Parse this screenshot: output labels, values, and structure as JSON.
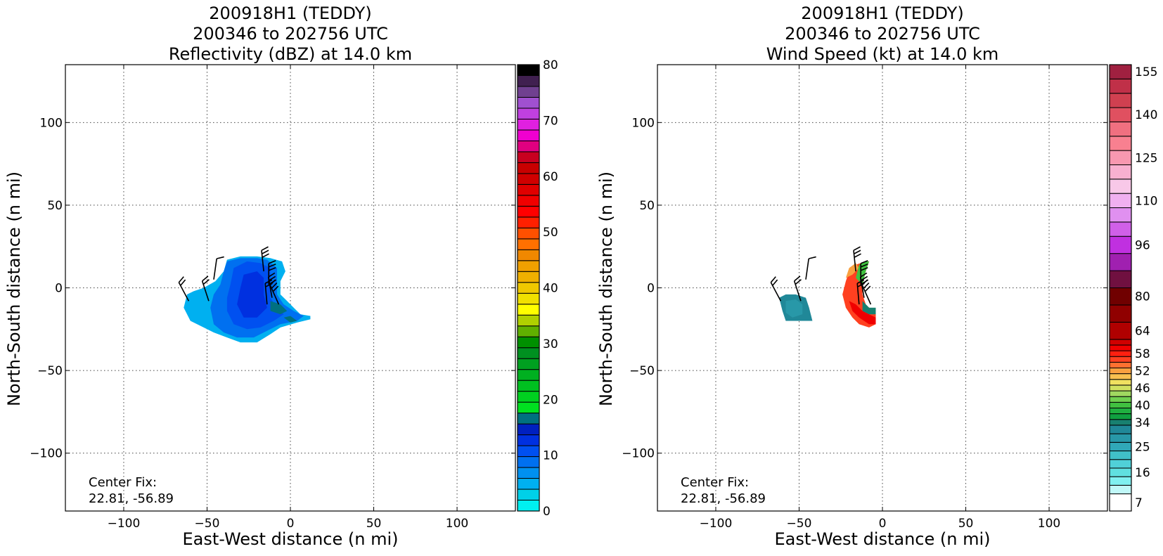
{
  "chart_data": [
    {
      "type": "heatmap",
      "title_lines": [
        "200918H1 (TEDDY)",
        "200346 to 202756 UTC",
        "Reflectivity (dBZ) at 14.0 km"
      ],
      "xlabel": "East-West distance (n mi)",
      "ylabel": "North-South distance (n mi)",
      "xlim": [
        -135,
        135
      ],
      "ylim": [
        -135,
        135
      ],
      "xticks": [
        -100,
        -50,
        0,
        50,
        100
      ],
      "yticks": [
        -100,
        -50,
        0,
        50,
        100
      ],
      "grid": true,
      "annotation": [
        "Center Fix:",
        "22.81, -56.89"
      ],
      "colorbar": {
        "min": 0,
        "max": 80,
        "tick_values": [
          0,
          10,
          20,
          30,
          40,
          50,
          60,
          70,
          80
        ],
        "tick_labels": [
          "0",
          "10",
          "20",
          "30",
          "40",
          "50",
          "60",
          "70",
          "80"
        ],
        "colors": [
          "#00f0f0",
          "#00d0e8",
          "#00b0f0",
          "#0090f0",
          "#0070f0",
          "#0050f0",
          "#0030e0",
          "#0020c0",
          "#007080",
          "#00e020",
          "#00d020",
          "#00c020",
          "#00b020",
          "#00a020",
          "#009020",
          "#009000",
          "#60b000",
          "#b0d000",
          "#ffff00",
          "#f0e000",
          "#f0c800",
          "#f0b000",
          "#f0a000",
          "#f08800",
          "#ff7000",
          "#ff5000",
          "#ff2000",
          "#ff0000",
          "#f00000",
          "#e00000",
          "#d00000",
          "#c80000",
          "#c80020",
          "#e00080",
          "#f000d0",
          "#e020e0",
          "#c040e0",
          "#a050d0",
          "#704090",
          "#402050",
          "#000000"
        ]
      },
      "field_regions": [
        {
          "level": 2,
          "points": [
            [
              -62,
              -4
            ],
            [
              -58,
              -2
            ],
            [
              -52,
              0
            ],
            [
              -45,
              4
            ],
            [
              -40,
              10
            ],
            [
              -38,
              17
            ],
            [
              -30,
              19
            ],
            [
              -20,
              19
            ],
            [
              -12,
              18
            ],
            [
              -5,
              16
            ],
            [
              -3,
              10
            ],
            [
              -6,
              4
            ],
            [
              -6,
              -4
            ],
            [
              -2,
              -8
            ],
            [
              2,
              -12
            ],
            [
              6,
              -16
            ],
            [
              12,
              -17
            ],
            [
              12,
              -19
            ],
            [
              4,
              -21
            ],
            [
              -6,
              -24
            ],
            [
              -12,
              -28
            ],
            [
              -20,
              -33
            ],
            [
              -30,
              -33
            ],
            [
              -38,
              -30
            ],
            [
              -46,
              -27
            ],
            [
              -52,
              -24
            ],
            [
              -60,
              -20
            ],
            [
              -64,
              -12
            ]
          ]
        },
        {
          "level": 4,
          "points": [
            [
              -46,
              -4
            ],
            [
              -42,
              2
            ],
            [
              -40,
              10
            ],
            [
              -38,
              16
            ],
            [
              -30,
              18
            ],
            [
              -20,
              18
            ],
            [
              -14,
              17
            ],
            [
              -8,
              12
            ],
            [
              -8,
              4
            ],
            [
              -8,
              -4
            ],
            [
              -4,
              -10
            ],
            [
              2,
              -14
            ],
            [
              8,
              -17
            ],
            [
              4,
              -20
            ],
            [
              -6,
              -22
            ],
            [
              -14,
              -26
            ],
            [
              -22,
              -30
            ],
            [
              -32,
              -30
            ],
            [
              -40,
              -27
            ],
            [
              -46,
              -22
            ],
            [
              -48,
              -12
            ]
          ]
        },
        {
          "level": 5,
          "points": [
            [
              -36,
              2
            ],
            [
              -34,
              12
            ],
            [
              -26,
              16
            ],
            [
              -18,
              15
            ],
            [
              -12,
              12
            ],
            [
              -12,
              2
            ],
            [
              -12,
              -6
            ],
            [
              -8,
              -12
            ],
            [
              -4,
              -16
            ],
            [
              -10,
              -20
            ],
            [
              -18,
              -24
            ],
            [
              -26,
              -25
            ],
            [
              -34,
              -22
            ],
            [
              -38,
              -14
            ],
            [
              -38,
              -6
            ]
          ]
        },
        {
          "level": 6,
          "points": [
            [
              -30,
              0
            ],
            [
              -28,
              8
            ],
            [
              -20,
              10
            ],
            [
              -16,
              6
            ],
            [
              -16,
              -4
            ],
            [
              -14,
              -12
            ],
            [
              -20,
              -18
            ],
            [
              -28,
              -18
            ],
            [
              -32,
              -10
            ]
          ]
        },
        {
          "level": 8,
          "points": [
            [
              -12,
              -8
            ],
            [
              -6,
              -10
            ],
            [
              -2,
              -14
            ],
            [
              -6,
              -16
            ],
            [
              -12,
              -14
            ]
          ]
        },
        {
          "level": 8,
          "points": [
            [
              -4,
              -18
            ],
            [
              0,
              -17
            ],
            [
              4,
              -20
            ],
            [
              0,
              -21
            ]
          ]
        }
      ],
      "wind_barbs": [
        {
          "x": -61,
          "y": -8,
          "angle": -28,
          "flags": 2
        },
        {
          "x": -49,
          "y": -8,
          "angle": -18,
          "flags": 2
        },
        {
          "x": -46,
          "y": 5,
          "angle": 8,
          "flags": 1
        },
        {
          "x": -16,
          "y": 10,
          "angle": -6,
          "flags": 3
        },
        {
          "x": -13,
          "y": 2,
          "angle": 0,
          "flags": 3
        },
        {
          "x": -11,
          "y": -6,
          "angle": -10,
          "flags": 3
        },
        {
          "x": -7,
          "y": -10,
          "angle": -24,
          "flags": 3
        },
        {
          "x": -14,
          "y": -10,
          "angle": -5,
          "flags": 2
        }
      ]
    },
    {
      "type": "heatmap",
      "title_lines": [
        "200918H1 (TEDDY)",
        "200346 to 202756 UTC",
        "Wind Speed (kt) at 14.0 km"
      ],
      "xlabel": "East-West distance (n mi)",
      "ylabel": "North-South distance (n mi)",
      "xlim": [
        -135,
        135
      ],
      "ylim": [
        -135,
        135
      ],
      "xticks": [
        -100,
        -50,
        0,
        50,
        100
      ],
      "yticks": [
        -100,
        -50,
        0,
        50,
        100
      ],
      "grid": true,
      "annotation": [
        "Center Fix:",
        "22.81, -56.89"
      ],
      "colorbar": {
        "min": 7,
        "max": 160,
        "tick_values": [
          7,
          16,
          25,
          34,
          40,
          46,
          52,
          58,
          64,
          80,
          96,
          110,
          125,
          140,
          155
        ],
        "tick_labels": [
          "7",
          "16",
          "25",
          "34",
          "40",
          "46",
          "52",
          "58",
          "64",
          "80",
          "96",
          "110",
          "125",
          "140",
          "155"
        ],
        "band_edges": [
          4,
          10,
          13,
          16,
          19,
          22,
          25,
          28,
          31,
          34,
          36,
          38,
          40,
          42,
          44,
          46,
          48,
          50,
          52,
          54,
          56,
          58,
          60,
          62,
          64,
          70,
          76,
          82,
          88,
          94,
          100,
          105,
          110,
          115,
          120,
          125,
          130,
          135,
          140,
          145,
          150,
          155,
          160
        ],
        "colors": [
          "#ffffff",
          "#c0f8f8",
          "#80f0f0",
          "#60e0e0",
          "#50d0d8",
          "#40c0c8",
          "#30a8b8",
          "#2898a8",
          "#208898",
          "#188070",
          "#10a040",
          "#20b040",
          "#40c040",
          "#70d050",
          "#a0d860",
          "#d0e060",
          "#f0e060",
          "#f8c050",
          "#f8a040",
          "#ff7030",
          "#ff4020",
          "#ff2010",
          "#f00000",
          "#d00000",
          "#b00000",
          "#900000",
          "#700000",
          "#701040",
          "#a020b0",
          "#c030e0",
          "#d060e8",
          "#e090f0",
          "#f0b0f0",
          "#f8c8e8",
          "#f8b0d0",
          "#f898b0",
          "#f88090",
          "#f07080",
          "#e05060",
          "#d04050",
          "#c03048",
          "#a02040",
          "#901838"
        ]
      },
      "field_regions": [
        {
          "level": 8,
          "points": [
            [
              -62,
              -6
            ],
            [
              -58,
              -4
            ],
            [
              -52,
              -4
            ],
            [
              -46,
              -6
            ],
            [
              -44,
              -12
            ],
            [
              -42,
              -20
            ],
            [
              -46,
              -20
            ],
            [
              -52,
              -20
            ],
            [
              -58,
              -20
            ],
            [
              -60,
              -14
            ]
          ]
        },
        {
          "level": 7,
          "points": [
            [
              -58,
              -8
            ],
            [
              -52,
              -7
            ],
            [
              -48,
              -10
            ],
            [
              -48,
              -16
            ],
            [
              -54,
              -18
            ],
            [
              -58,
              -15
            ]
          ]
        },
        {
          "level": 20,
          "points": [
            [
              -22,
              4
            ],
            [
              -20,
              10
            ],
            [
              -16,
              14
            ],
            [
              -10,
              16
            ],
            [
              -8,
              16
            ],
            [
              -10,
              10
            ],
            [
              -12,
              2
            ],
            [
              -12,
              -4
            ],
            [
              -10,
              -10
            ],
            [
              -6,
              -14
            ],
            [
              -4,
              -16
            ],
            [
              -4,
              -22
            ],
            [
              -8,
              -24
            ],
            [
              -14,
              -22
            ],
            [
              -18,
              -18
            ],
            [
              -22,
              -12
            ],
            [
              -24,
              -4
            ]
          ]
        },
        {
          "level": 22,
          "points": [
            [
              -20,
              -8
            ],
            [
              -18,
              -14
            ],
            [
              -14,
              -18
            ],
            [
              -8,
              -22
            ],
            [
              -4,
              -22
            ],
            [
              -4,
              -18
            ],
            [
              -8,
              -16
            ],
            [
              -12,
              -14
            ],
            [
              -16,
              -10
            ]
          ]
        },
        {
          "level": 18,
          "points": [
            [
              -22,
              6
            ],
            [
              -20,
              12
            ],
            [
              -16,
              15
            ],
            [
              -14,
              12
            ],
            [
              -18,
              8
            ]
          ]
        },
        {
          "level": 12,
          "points": [
            [
              -16,
              6
            ],
            [
              -14,
              14
            ],
            [
              -10,
              16
            ],
            [
              -8,
              16
            ],
            [
              -10,
              10
            ],
            [
              -12,
              2
            ]
          ]
        },
        {
          "level": 9,
          "points": [
            [
              -12,
              -8
            ],
            [
              -8,
              -12
            ],
            [
              -4,
              -12
            ],
            [
              -4,
              -16
            ],
            [
              -8,
              -16
            ],
            [
              -12,
              -14
            ]
          ]
        }
      ],
      "wind_barbs": [
        {
          "x": -61,
          "y": -8,
          "angle": -28,
          "flags": 2
        },
        {
          "x": -49,
          "y": -8,
          "angle": -18,
          "flags": 2
        },
        {
          "x": -46,
          "y": 5,
          "angle": 8,
          "flags": 1
        },
        {
          "x": -16,
          "y": 10,
          "angle": -6,
          "flags": 3
        },
        {
          "x": -13,
          "y": 2,
          "angle": 0,
          "flags": 3
        },
        {
          "x": -11,
          "y": -6,
          "angle": -10,
          "flags": 3
        },
        {
          "x": -7,
          "y": -10,
          "angle": -24,
          "flags": 3
        },
        {
          "x": -14,
          "y": -10,
          "angle": -5,
          "flags": 2
        }
      ]
    }
  ]
}
